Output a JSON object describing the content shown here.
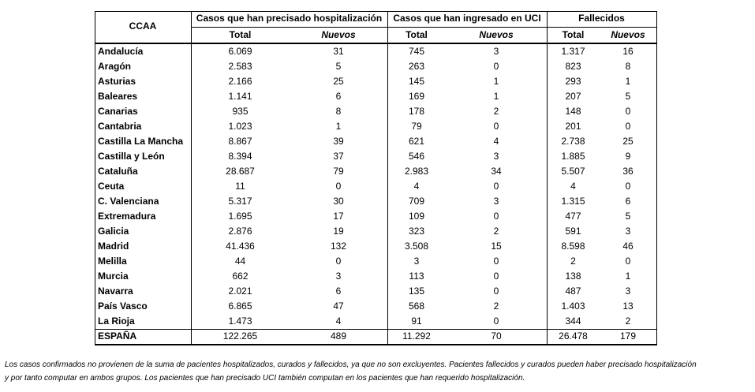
{
  "table": {
    "header": {
      "ccaa": "CCAA",
      "groups": [
        "Casos que han precisado hospitalización",
        "Casos que han ingresado en UCI",
        "Fallecidos"
      ],
      "sub": [
        "Total",
        "Nuevos",
        "Total",
        "Nuevos",
        "Total",
        "Nuevos"
      ]
    },
    "rows": [
      [
        "Andalucía",
        "6.069",
        "31",
        "745",
        "3",
        "1.317",
        "16"
      ],
      [
        "Aragón",
        "2.583",
        "5",
        "263",
        "0",
        "823",
        "8"
      ],
      [
        "Asturias",
        "2.166",
        "25",
        "145",
        "1",
        "293",
        "1"
      ],
      [
        "Baleares",
        "1.141",
        "6",
        "169",
        "1",
        "207",
        "5"
      ],
      [
        "Canarias",
        "935",
        "8",
        "178",
        "2",
        "148",
        "0"
      ],
      [
        "Cantabria",
        "1.023",
        "1",
        "79",
        "0",
        "201",
        "0"
      ],
      [
        "Castilla La Mancha",
        "8.867",
        "39",
        "621",
        "4",
        "2.738",
        "25"
      ],
      [
        "Castilla y León",
        "8.394",
        "37",
        "546",
        "3",
        "1.885",
        "9"
      ],
      [
        "Cataluña",
        "28.687",
        "79",
        "2.983",
        "34",
        "5.507",
        "36"
      ],
      [
        "Ceuta",
        "11",
        "0",
        "4",
        "0",
        "4",
        "0"
      ],
      [
        "C. Valenciana",
        "5.317",
        "30",
        "709",
        "3",
        "1.315",
        "6"
      ],
      [
        "Extremadura",
        "1.695",
        "17",
        "109",
        "0",
        "477",
        "5"
      ],
      [
        "Galicia",
        "2.876",
        "19",
        "323",
        "2",
        "591",
        "3"
      ],
      [
        "Madrid",
        "41.436",
        "132",
        "3.508",
        "15",
        "8.598",
        "46"
      ],
      [
        "Melilla",
        "44",
        "0",
        "3",
        "0",
        "2",
        "0"
      ],
      [
        "Murcia",
        "662",
        "3",
        "113",
        "0",
        "138",
        "1"
      ],
      [
        "Navarra",
        "2.021",
        "6",
        "135",
        "0",
        "487",
        "3"
      ],
      [
        "País Vasco",
        "6.865",
        "47",
        "568",
        "2",
        "1.403",
        "13"
      ],
      [
        "La Rioja",
        "1.473",
        "4",
        "91",
        "0",
        "344",
        "2"
      ]
    ],
    "total": [
      "ESPAÑA",
      "122.265",
      "489",
      "11.292",
      "70",
      "26.478",
      "179"
    ]
  },
  "footnote": [
    "Los casos confirmados no provienen de la suma de pacientes hospitalizados, curados y fallecidos, ya que no son excluyentes. Pacientes fallecidos y curados pueden haber precisado hospitalización",
    "y por tanto computar en ambos grupos. Los pacientes que han precisado UCI también computan en los pacientes que han requerido hospitalización."
  ]
}
